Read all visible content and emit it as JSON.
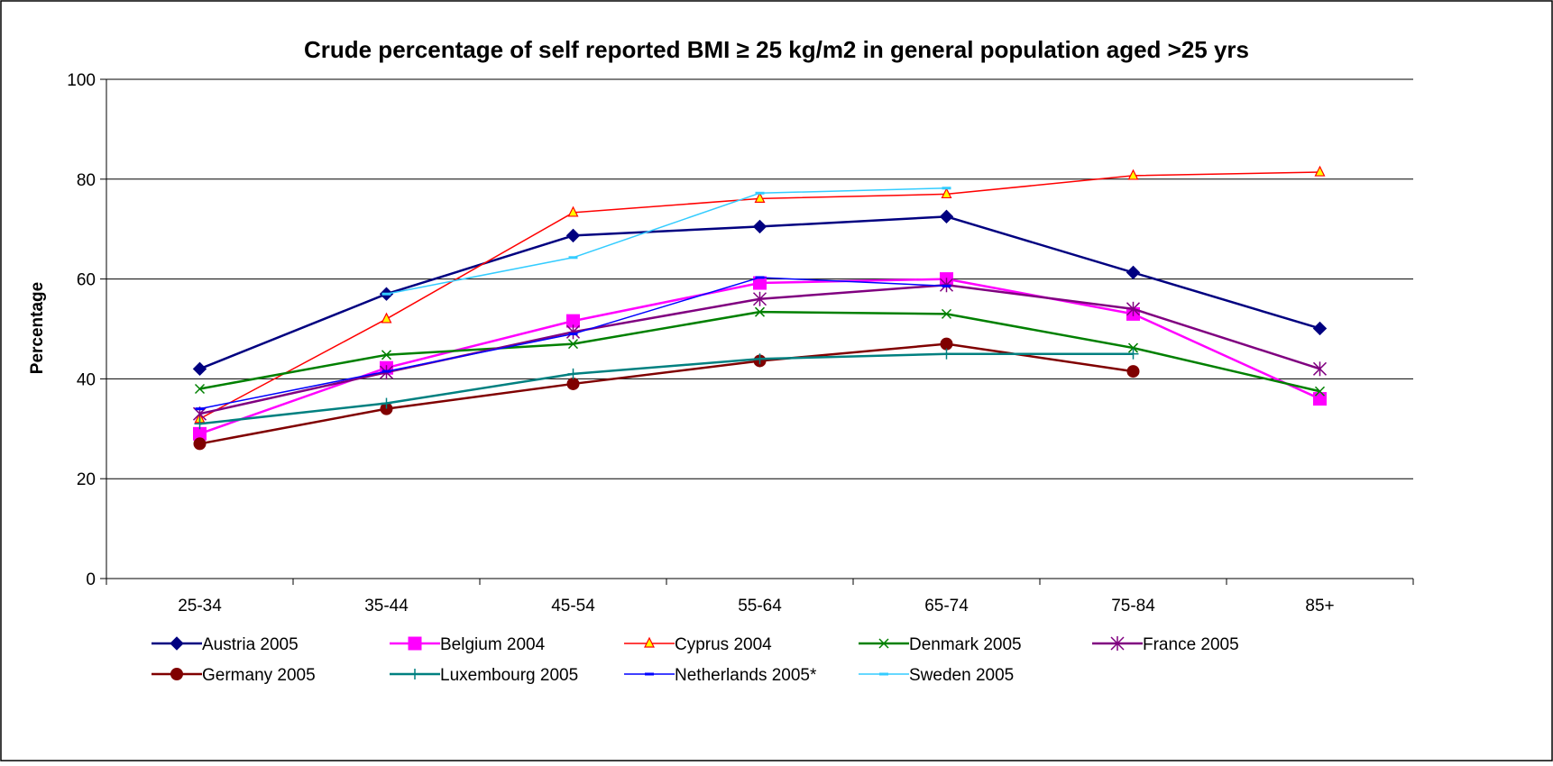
{
  "chart_data": {
    "type": "line",
    "title": "Crude percentage of self reported BMI ≥ 25 kg/m2 in general population aged >25 yrs",
    "xlabel": "",
    "ylabel": "Percentage",
    "categories": [
      "25-34",
      "35-44",
      "45-54",
      "55-64",
      "65-74",
      "75-84",
      "85+"
    ],
    "ylim": [
      0,
      100
    ],
    "yticks": [
      0,
      20,
      40,
      60,
      80,
      100
    ],
    "grid": "horizontal",
    "legend_position": "bottom",
    "series": [
      {
        "name": "Austria 2005",
        "color": "#000080",
        "marker": "diamond",
        "values": [
          42,
          57,
          68.7,
          70.5,
          72.5,
          61.3,
          50.1
        ]
      },
      {
        "name": "Belgium 2004",
        "color": "#FF00FF",
        "marker": "square",
        "values": [
          29,
          42.2,
          51.6,
          59.2,
          60,
          53,
          36
        ]
      },
      {
        "name": "Cyprus 2004",
        "color": "#FF0000",
        "marker": "triangle",
        "values": [
          32,
          52,
          73.3,
          76.1,
          77,
          80.7,
          81.4
        ]
      },
      {
        "name": "Denmark 2005",
        "color": "#008000",
        "marker": "x",
        "values": [
          38,
          44.8,
          47,
          53.4,
          53,
          46.2,
          37.5
        ]
      },
      {
        "name": "France 2005",
        "color": "#800080",
        "marker": "star",
        "values": [
          33,
          41.3,
          49.4,
          56,
          58.8,
          54,
          42
        ]
      },
      {
        "name": "Germany 2005",
        "color": "#800000",
        "marker": "circle",
        "values": [
          27,
          34,
          39,
          43.6,
          47,
          41.5,
          null
        ]
      },
      {
        "name": "Luxembourg 2005",
        "color": "#008080",
        "marker": "plus",
        "values": [
          31,
          35.1,
          41,
          44,
          45,
          45,
          null
        ]
      },
      {
        "name": "Netherlands 2005*",
        "color": "#0000FF",
        "marker": "dash",
        "values": [
          34,
          41.5,
          49,
          60.3,
          58.6,
          null,
          null
        ]
      },
      {
        "name": "Sweden 2005",
        "color": "#33CCFF",
        "marker": "dash",
        "values": [
          null,
          57,
          64.3,
          77.2,
          78.2,
          null,
          null
        ]
      }
    ]
  }
}
